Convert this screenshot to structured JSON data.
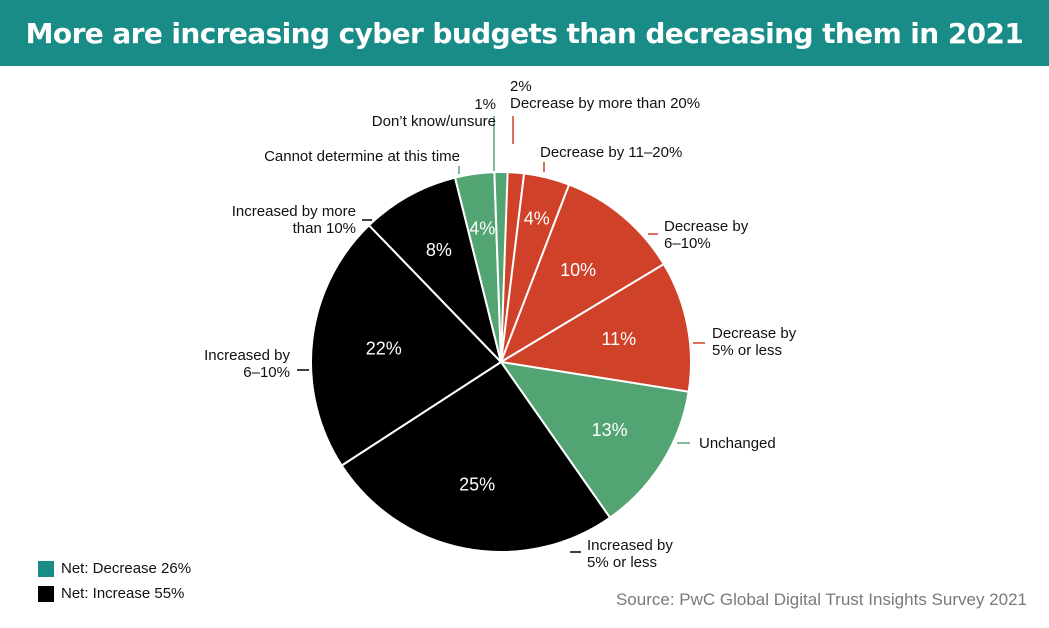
{
  "title": "More are increasing cyber budgets than decreasing them in 2021",
  "colors": {
    "banner": "#1a8c87",
    "decrease": "#cf4128",
    "neutral": "#52a473",
    "increase": "#000000",
    "legend_decrease": "#1a8c87",
    "legend_increase": "#000000"
  },
  "chart_data": {
    "type": "pie",
    "unit": "%",
    "slices": [
      {
        "label": "Decrease by more than 20%",
        "value": 2,
        "group": "decrease",
        "value_label": ""
      },
      {
        "label": "Decrease by 11–20%",
        "value": 4,
        "group": "decrease",
        "value_label": "4%"
      },
      {
        "label": "Decrease by 6–10%",
        "value": 10,
        "group": "decrease",
        "value_label": "10%"
      },
      {
        "label": "Decrease by 5% or less",
        "value": 11,
        "group": "decrease",
        "value_label": "11%"
      },
      {
        "label": "Unchanged",
        "value": 13,
        "group": "neutral",
        "value_label": "13%"
      },
      {
        "label": "Increased by 5% or less",
        "value": 25,
        "group": "increase",
        "value_label": "25%"
      },
      {
        "label": "Increased by 6–10%",
        "value": 22,
        "group": "increase",
        "value_label": "22%"
      },
      {
        "label": "Increased by more than 10%",
        "value": 8,
        "group": "increase",
        "value_label": "8%"
      },
      {
        "label": "Cannot determine at this time",
        "value": 4,
        "group": "neutral",
        "value_label": "4%"
      },
      {
        "label": "Don’t know/unsure",
        "value": 1,
        "group": "neutral",
        "value_label": ""
      }
    ],
    "outside_labels": [
      {
        "lines": [
          "2%",
          "Decrease by more than 20%"
        ]
      },
      {
        "lines": [
          "Decrease by 11–20%"
        ]
      },
      {
        "lines": [
          "Decrease by",
          "6–10%"
        ]
      },
      {
        "lines": [
          "Decrease by",
          "5% or less"
        ]
      },
      {
        "lines": [
          "Unchanged"
        ]
      },
      {
        "lines": [
          "Increased by",
          "5% or less"
        ]
      },
      {
        "lines": [
          "Increased by",
          "6–10%"
        ]
      },
      {
        "lines": [
          "Increased by more",
          "than 10%"
        ]
      },
      {
        "lines": [
          "Cannot determine at this time"
        ]
      },
      {
        "lines": [
          "1%",
          "Don’t know/unsure"
        ]
      }
    ]
  },
  "legend": [
    {
      "label": "Net: Decrease 26%",
      "color": "#1a8c87"
    },
    {
      "label": "Net: Increase 55%",
      "color": "#000000"
    }
  ],
  "source": "Source: PwC  Global Digital Trust Insights Survey 2021"
}
